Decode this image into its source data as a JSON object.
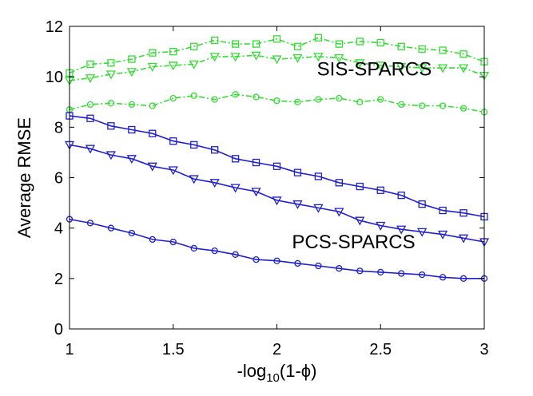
{
  "chart_data": {
    "type": "line",
    "title": "",
    "xlabel": {
      "base": "-log",
      "sub": "10",
      "rest": "(1-ϕ)"
    },
    "ylabel": "Average RMSE",
    "xlim": [
      1,
      3
    ],
    "ylim": [
      0,
      12
    ],
    "xticks": [
      1,
      1.5,
      2,
      2.5,
      3
    ],
    "xtick_labels": [
      "1",
      "1.5",
      "2",
      "2.5",
      "3"
    ],
    "yticks": [
      0,
      2,
      4,
      6,
      8,
      10,
      12
    ],
    "ytick_labels": [
      "0",
      "2",
      "4",
      "6",
      "8",
      "10",
      "12"
    ],
    "grid": false,
    "x": [
      1.0,
      1.1,
      1.2,
      1.3,
      1.4,
      1.5,
      1.6,
      1.7,
      1.8,
      1.9,
      2.0,
      2.1,
      2.2,
      2.3,
      2.4,
      2.5,
      2.6,
      2.7,
      2.8,
      2.9,
      3.0
    ],
    "series": [
      {
        "group": "SIS",
        "marker": "square",
        "color": "#33dd33",
        "dash": "dashdot",
        "values": [
          10.15,
          10.5,
          10.55,
          10.7,
          10.95,
          11.0,
          11.2,
          11.45,
          11.3,
          11.3,
          11.5,
          11.2,
          11.55,
          11.3,
          11.4,
          11.35,
          11.2,
          11.1,
          11.05,
          10.9,
          10.6
        ]
      },
      {
        "group": "SIS",
        "marker": "triangle-down",
        "color": "#33dd33",
        "dash": "dashdot",
        "values": [
          9.85,
          9.95,
          10.1,
          10.2,
          10.4,
          10.45,
          10.5,
          10.8,
          10.8,
          10.85,
          10.7,
          10.75,
          10.8,
          10.75,
          10.55,
          10.45,
          10.4,
          10.35,
          10.35,
          10.35,
          10.05
        ]
      },
      {
        "group": "SIS",
        "marker": "circle",
        "color": "#33dd33",
        "dash": "dashdot",
        "values": [
          8.7,
          8.9,
          8.95,
          8.9,
          8.85,
          9.15,
          9.25,
          9.1,
          9.3,
          9.2,
          9.05,
          9.0,
          9.1,
          9.15,
          9.0,
          9.1,
          8.9,
          8.85,
          8.85,
          8.75,
          8.6
        ]
      },
      {
        "group": "PCS",
        "marker": "square",
        "color": "#1f1fcf",
        "dash": "solid",
        "values": [
          8.45,
          8.35,
          8.05,
          7.9,
          7.75,
          7.45,
          7.3,
          7.1,
          6.75,
          6.6,
          6.45,
          6.2,
          6.05,
          5.8,
          5.65,
          5.5,
          5.3,
          4.95,
          4.7,
          4.6,
          4.45
        ]
      },
      {
        "group": "PCS",
        "marker": "triangle-down",
        "color": "#1f1fcf",
        "dash": "solid",
        "values": [
          7.3,
          7.15,
          6.9,
          6.75,
          6.45,
          6.3,
          5.95,
          5.8,
          5.6,
          5.45,
          5.1,
          4.95,
          4.8,
          4.65,
          4.3,
          4.1,
          3.95,
          3.85,
          3.75,
          3.6,
          3.45
        ]
      },
      {
        "group": "PCS",
        "marker": "circle",
        "color": "#1f1fcf",
        "dash": "solid",
        "values": [
          4.35,
          4.2,
          4.0,
          3.8,
          3.55,
          3.45,
          3.2,
          3.1,
          2.95,
          2.75,
          2.7,
          2.6,
          2.5,
          2.4,
          2.3,
          2.25,
          2.2,
          2.15,
          2.05,
          2.0,
          2.0
        ]
      }
    ],
    "annotations": [
      {
        "text": "SIS-SPARCS",
        "x": 2.47,
        "y": 10.05
      },
      {
        "text": "PCS-SPARCS",
        "x": 2.37,
        "y": 3.2
      }
    ]
  }
}
